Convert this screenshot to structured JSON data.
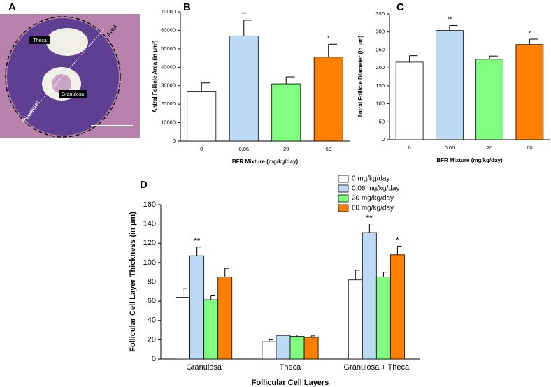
{
  "panel_a": {
    "label": "A",
    "annotations": [
      "Theca",
      "Area",
      "Granulosa",
      "Diameter"
    ]
  },
  "chart_data": [
    {
      "type": "bar",
      "panel_label": "B",
      "y_label": "Antral Follicle Area (in µm²)",
      "x_label": "BFR Mixture (mg/kg/day)",
      "categories": [
        "0",
        "0.06",
        "20",
        "60"
      ],
      "values": [
        27000,
        57000,
        31000,
        45500
      ],
      "errors": [
        4500,
        8500,
        3800,
        7000
      ],
      "colors": [
        "#ffffff",
        "#bcd9f5",
        "#80ff80",
        "#ff8000"
      ],
      "ylim": [
        0,
        70000
      ],
      "yticks": [
        0,
        10000,
        20000,
        30000,
        40000,
        50000,
        60000,
        70000
      ],
      "annotations": [
        {
          "text": "**",
          "category": 1
        },
        {
          "text": "*",
          "category": 3
        }
      ]
    },
    {
      "type": "bar",
      "panel_label": "C",
      "y_label": "Antral Follicle Diameter (in µm)",
      "x_label": "BFR Mixture (mg/kg/day)",
      "categories": [
        "0",
        "0.06",
        "20",
        "60"
      ],
      "values": [
        216,
        304,
        224,
        265
      ],
      "errors": [
        18,
        14,
        9,
        15
      ],
      "colors": [
        "#ffffff",
        "#bcd9f5",
        "#80ff80",
        "#ff8000"
      ],
      "ylim": [
        0,
        350
      ],
      "yticks": [
        0,
        50,
        100,
        150,
        200,
        250,
        300,
        350
      ],
      "annotations": [
        {
          "text": "**",
          "category": 1
        },
        {
          "text": "*",
          "category": 3
        }
      ]
    },
    {
      "type": "bar",
      "panel_label": "D",
      "y_label": "Follicular Cell Layer Thickness (in µm)",
      "x_label": "Follicular Cell Layers",
      "categories": [
        "Granulosa",
        "Theca",
        "Granulosa + Theca"
      ],
      "series": [
        {
          "name": "0 mg/kg/day",
          "color": "#ffffff",
          "values": [
            64,
            18,
            82
          ],
          "errors": [
            9,
            2,
            10
          ]
        },
        {
          "name": "0.06 mg/kg/day",
          "color": "#bcd9f5",
          "values": [
            107,
            24.5,
            131
          ],
          "errors": [
            9,
            0.5,
            9
          ]
        },
        {
          "name": "20 mg/kg/day",
          "color": "#80ff80",
          "values": [
            61.5,
            23.5,
            85
          ],
          "errors": [
            4,
            1.5,
            5
          ]
        },
        {
          "name": "60 mg/kg/day",
          "color": "#ff8000",
          "values": [
            85,
            22.5,
            108
          ],
          "errors": [
            9,
            1.5,
            9
          ]
        }
      ],
      "ylim": [
        0,
        160
      ],
      "yticks": [
        0,
        20,
        40,
        60,
        80,
        100,
        120,
        140,
        160
      ],
      "legend": "top-right",
      "annotations": [
        {
          "text": "**",
          "series": 1,
          "category": 0
        },
        {
          "text": "**",
          "series": 1,
          "category": 2
        },
        {
          "text": "*",
          "series": 3,
          "category": 2
        }
      ]
    }
  ]
}
